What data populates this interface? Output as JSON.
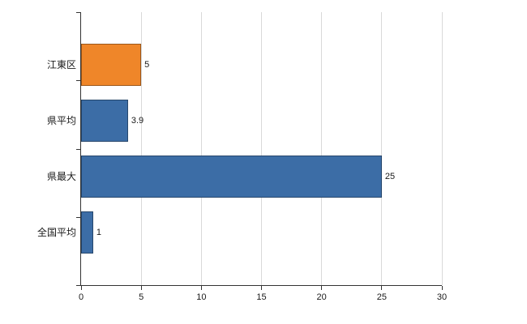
{
  "chart_data": {
    "type": "bar",
    "orientation": "horizontal",
    "title": "",
    "xlabel": "",
    "ylabel": "",
    "categories": [
      "江東区",
      "県平均",
      "県最大",
      "全国平均"
    ],
    "values": [
      5,
      3.9,
      25,
      1
    ],
    "value_labels": [
      "5",
      "3.9",
      "25",
      "1"
    ],
    "bar_colors": [
      "#ef8629",
      "#3c6da6",
      "#3c6da6",
      "#3c6da6"
    ],
    "xlim": [
      0,
      30
    ],
    "x_ticks": [
      0,
      5,
      10,
      15,
      20,
      25,
      30
    ],
    "x_tick_labels": [
      "0",
      "5",
      "10",
      "15",
      "20",
      "25",
      "30"
    ],
    "grid": true,
    "legend": "none",
    "colors": {
      "highlight_bar": "#ef8629",
      "default_bar": "#3c6da6",
      "gridline": "#d9d9d9",
      "axis": "#333333",
      "background": "#ffffff",
      "text": "#1a1a1a"
    }
  }
}
